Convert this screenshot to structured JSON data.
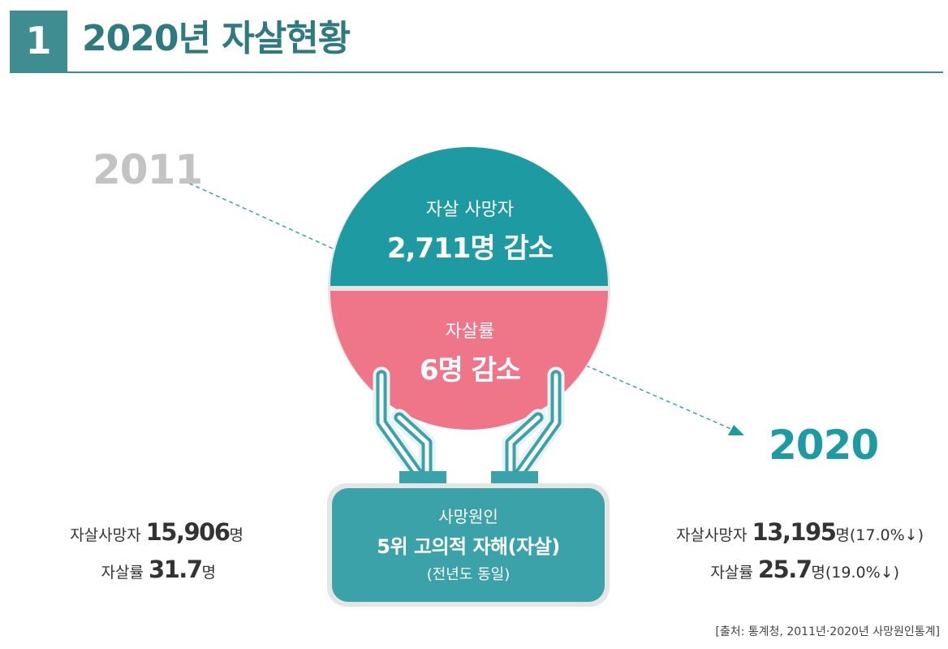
{
  "header": {
    "number": "1",
    "title": "2020년 자살현황"
  },
  "years": {
    "from": "2011",
    "to": "2020"
  },
  "circle": {
    "top_label": "자살 사망자",
    "top_value": "2,711명 감소",
    "bottom_label": "자살률",
    "bottom_value": "6명 감소"
  },
  "cause_box": {
    "label": "사망원인",
    "value": "5위 고의적 자해(자살)",
    "note": "(전년도 동일)"
  },
  "stats_2011": {
    "deaths_label": "자살사망자",
    "deaths_value": "15,906",
    "deaths_unit": "명",
    "rate_label": "자살률",
    "rate_value": "31.7",
    "rate_unit": "명"
  },
  "stats_2020": {
    "deaths_label": "자살사망자",
    "deaths_value": "13,195",
    "deaths_unit": "명",
    "deaths_change": "(17.0%↓)",
    "rate_label": "자살률",
    "rate_value": "25.7",
    "rate_unit": "명",
    "rate_change": "(19.0%↓)"
  },
  "source": "[출처: 통계청, 2011년·2020년 사망원인통계]",
  "colors": {
    "header_teal": "#3f8d91",
    "circle_top": "#1e9aa2",
    "circle_bottom": "#ef7589",
    "hands": "#3aa2a8",
    "box": "#3aa2a8",
    "year_2011": "#c3c3c3",
    "year_2020": "#1e9aa2"
  }
}
